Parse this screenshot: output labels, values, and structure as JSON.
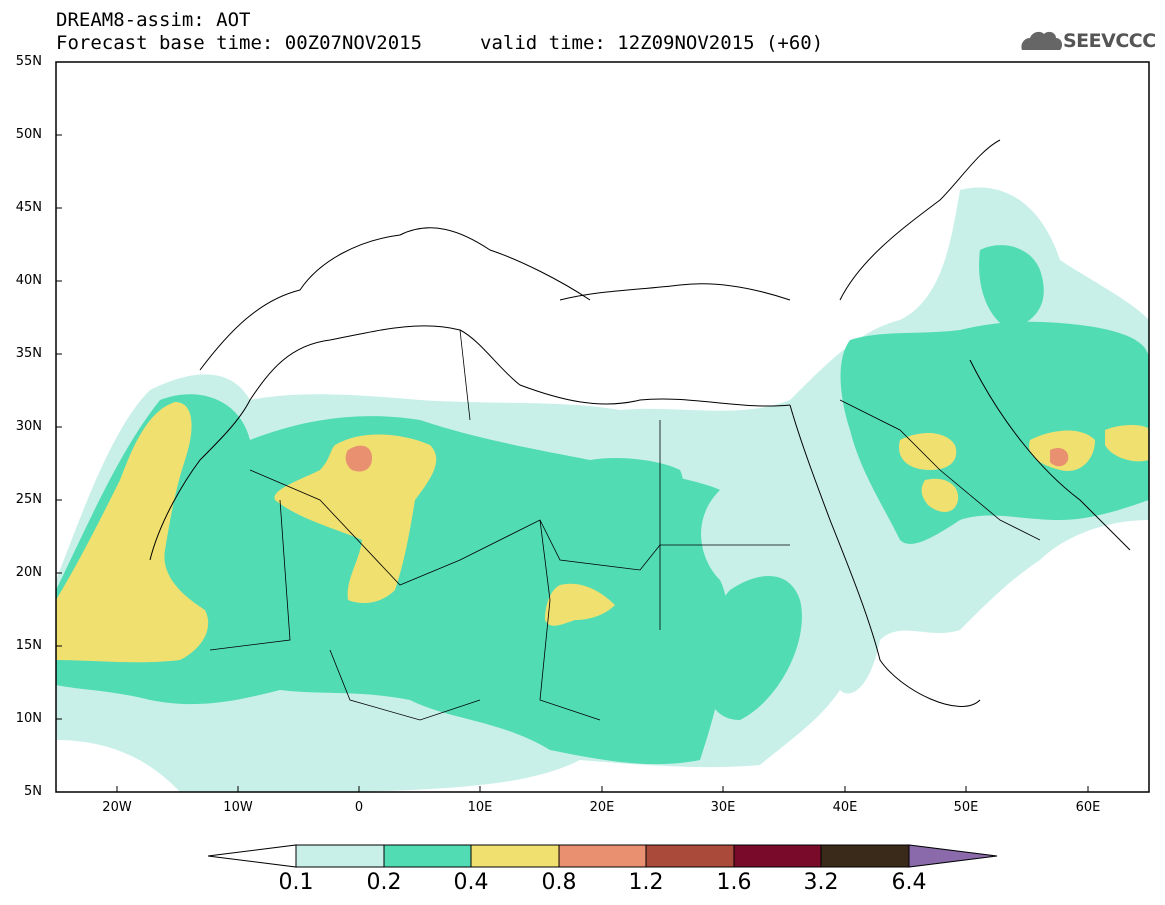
{
  "header": {
    "title": "DREAM8-assim: AOT",
    "base_time": "Forecast base time: 00Z07NOV2015",
    "valid_time": "valid time: 12Z09NOV2015 (+60)"
  },
  "logo": {
    "text": "SEEVCCC",
    "icon": "cloud-logo-icon"
  },
  "axes": {
    "lat_labels": [
      "55N",
      "50N",
      "45N",
      "40N",
      "35N",
      "30N",
      "25N",
      "20N",
      "15N",
      "10N",
      "5N"
    ],
    "lon_labels": [
      "20W",
      "10W",
      "0",
      "10E",
      "20E",
      "30E",
      "40E",
      "50E",
      "60E"
    ]
  },
  "colorbar": {
    "labels": [
      "0.1",
      "0.2",
      "0.4",
      "0.8",
      "1.2",
      "1.6",
      "3.2",
      "6.4"
    ],
    "colors": [
      "#ffffff",
      "#c8f0e8",
      "#52dcb4",
      "#f0e070",
      "#e89070",
      "#aa4a3a",
      "#7a0a2a",
      "#3a2a1a",
      "#8a6aaa"
    ]
  },
  "colors": {
    "bin_0_1_0_2": "#c8f0e8",
    "bin_0_2_0_4": "#52dcb4",
    "bin_0_4_0_8": "#f0e070",
    "bin_0_8_1_2": "#e89070"
  }
}
